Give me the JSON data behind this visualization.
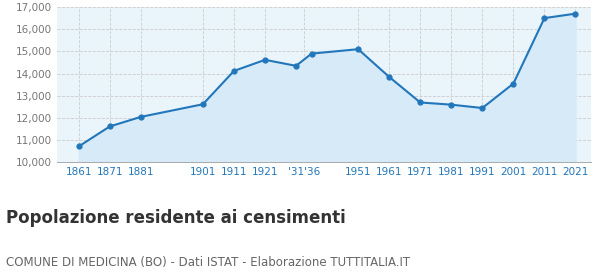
{
  "years": [
    1861,
    1871,
    1881,
    1901,
    1911,
    1921,
    1931,
    1936,
    1951,
    1961,
    1971,
    1981,
    1991,
    2001,
    2011,
    2021
  ],
  "population": [
    10720,
    11620,
    12050,
    12620,
    14120,
    14620,
    14350,
    14900,
    15100,
    13850,
    12700,
    12600,
    12450,
    13550,
    16500,
    16700
  ],
  "ylim": [
    10000,
    17000
  ],
  "yticks": [
    10000,
    11000,
    12000,
    13000,
    14000,
    15000,
    16000,
    17000
  ],
  "xlim_left": 1854,
  "xlim_right": 2026,
  "line_color": "#2277bb",
  "fill_color": "#d6eaf8",
  "marker_color": "#2277bb",
  "grid_color": "#cccccc",
  "background_color": "#eaf4fb",
  "title": "Popolazione residente ai censimenti",
  "subtitle": "COMUNE DI MEDICINA (BO) - Dati ISTAT - Elaborazione TUTTITALIA.IT",
  "title_fontsize": 12,
  "subtitle_fontsize": 8.5,
  "xtick_labels": [
    "1861",
    "1871",
    "1881",
    "1901",
    "1911",
    "1921",
    "'31'36",
    "1951",
    "1961",
    "1971",
    "1981",
    "1991",
    "2001",
    "2011",
    "2021"
  ],
  "xtick_positions": [
    1861,
    1871,
    1881,
    1901,
    1911,
    1921,
    1933.5,
    1951,
    1961,
    1971,
    1981,
    1991,
    2001,
    2011,
    2021
  ],
  "xtick_color": "#2277bb"
}
